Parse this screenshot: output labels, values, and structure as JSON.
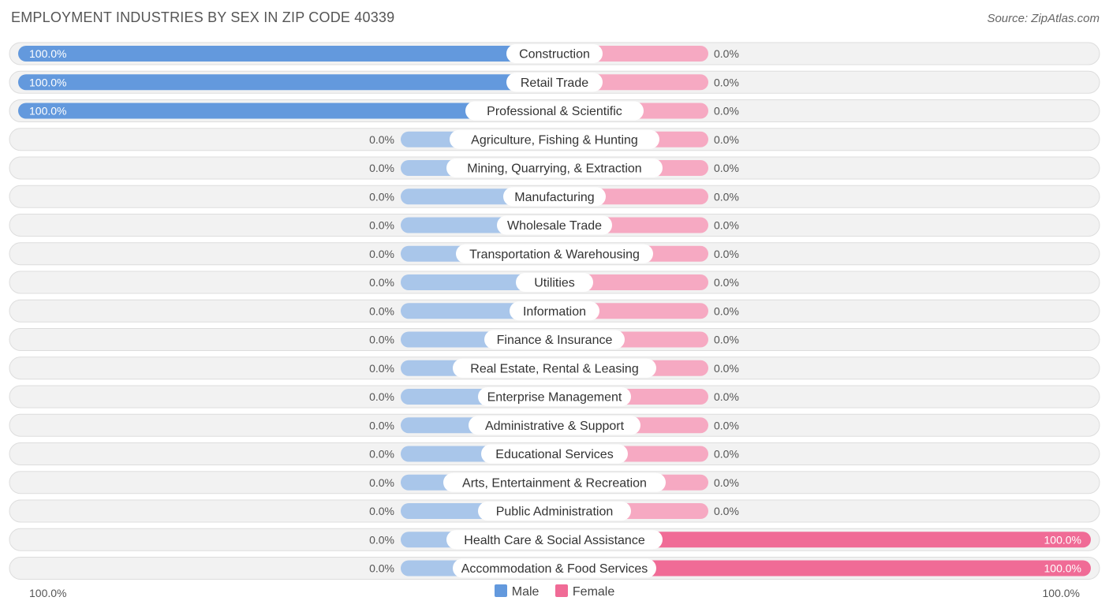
{
  "header": {
    "title": "EMPLOYMENT INDUSTRIES BY SEX IN ZIP CODE 40339",
    "source": "Source: ZipAtlas.com"
  },
  "legend": {
    "male_label": "Male",
    "female_label": "Female"
  },
  "axis": {
    "left_label": "100.0%",
    "right_label": "100.0%"
  },
  "colors": {
    "male_strong": "#6399dd",
    "male_light": "#a9c6ea",
    "female_strong": "#f06b96",
    "female_light": "#f6a9c2",
    "row_bg": "#f2f2f2",
    "row_border": "#dddddd"
  },
  "chart_data": {
    "type": "bar",
    "orientation": "horizontal-diverging",
    "title": "EMPLOYMENT INDUSTRIES BY SEX IN ZIP CODE 40339",
    "xlabel": "",
    "ylabel": "",
    "xlim": [
      -100,
      100
    ],
    "categories": [
      "Construction",
      "Retail Trade",
      "Professional & Scientific",
      "Agriculture, Fishing & Hunting",
      "Mining, Quarrying, & Extraction",
      "Manufacturing",
      "Wholesale Trade",
      "Transportation & Warehousing",
      "Utilities",
      "Information",
      "Finance & Insurance",
      "Real Estate, Rental & Leasing",
      "Enterprise Management",
      "Administrative & Support",
      "Educational Services",
      "Arts, Entertainment & Recreation",
      "Public Administration",
      "Health Care & Social Assistance",
      "Accommodation & Food Services"
    ],
    "series": [
      {
        "name": "Male",
        "values": [
          100,
          100,
          100,
          0,
          0,
          0,
          0,
          0,
          0,
          0,
          0,
          0,
          0,
          0,
          0,
          0,
          0,
          0,
          0
        ],
        "labels": [
          "100.0%",
          "100.0%",
          "100.0%",
          "0.0%",
          "0.0%",
          "0.0%",
          "0.0%",
          "0.0%",
          "0.0%",
          "0.0%",
          "0.0%",
          "0.0%",
          "0.0%",
          "0.0%",
          "0.0%",
          "0.0%",
          "0.0%",
          "0.0%",
          "0.0%"
        ]
      },
      {
        "name": "Female",
        "values": [
          0,
          0,
          0,
          0,
          0,
          0,
          0,
          0,
          0,
          0,
          0,
          0,
          0,
          0,
          0,
          0,
          0,
          100,
          100
        ],
        "labels": [
          "0.0%",
          "0.0%",
          "0.0%",
          "0.0%",
          "0.0%",
          "0.0%",
          "0.0%",
          "0.0%",
          "0.0%",
          "0.0%",
          "0.0%",
          "0.0%",
          "0.0%",
          "0.0%",
          "0.0%",
          "0.0%",
          "0.0%",
          "100.0%",
          "100.0%"
        ]
      }
    ],
    "legend_position": "bottom-center"
  }
}
